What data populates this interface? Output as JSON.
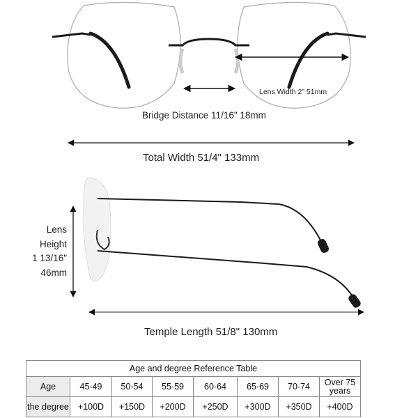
{
  "labels": {
    "lens_width": "Lens Width 2\" 51mm",
    "bridge_distance": "Bridge Distance 11/16\" 18mm",
    "total_width": "Total Width 51/4\" 133mm",
    "lens_height": [
      "Lens",
      "Height",
      "1 13/16\"",
      "46mm"
    ],
    "temple_length": "Temple Length 51/8\" 130mm"
  },
  "table": {
    "title": "Age and degree Reference Table",
    "rows": [
      {
        "header": "Age",
        "cells": [
          "45-49",
          "50-54",
          "55-59",
          "60-64",
          "65-69",
          "70-74",
          "Over 75 years"
        ]
      },
      {
        "header": "the degree",
        "cells": [
          "+100D",
          "+150D",
          "+200D",
          "+250D",
          "+300D",
          "+350D",
          "+400D"
        ]
      }
    ]
  },
  "colors": {
    "frame": "#1a1a1a",
    "lens_edge": "#b0b0b0",
    "header_bg": "#ececec"
  }
}
